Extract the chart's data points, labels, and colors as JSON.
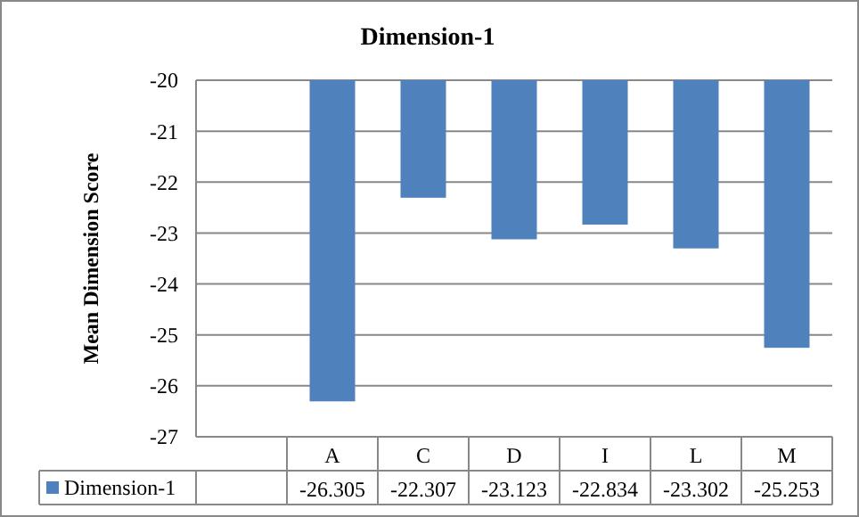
{
  "chart_data": {
    "type": "bar",
    "title": "Dimension-1",
    "ylabel": "Mean Dimension Score",
    "categories": [
      null,
      "A",
      "C",
      "D",
      "I",
      "L",
      "M"
    ],
    "series": [
      {
        "name": "Dimension-1",
        "color": "#4f81bd",
        "values": [
          null,
          -26.305,
          -22.307,
          -23.123,
          -22.834,
          -23.302,
          -25.253
        ]
      }
    ],
    "ylim": [
      -27,
      -20
    ],
    "yticks": [
      -27,
      -26,
      -25,
      -24,
      -23,
      -22,
      -21,
      -20
    ],
    "grid": "y",
    "data_labels": true,
    "legend": "bottom"
  }
}
